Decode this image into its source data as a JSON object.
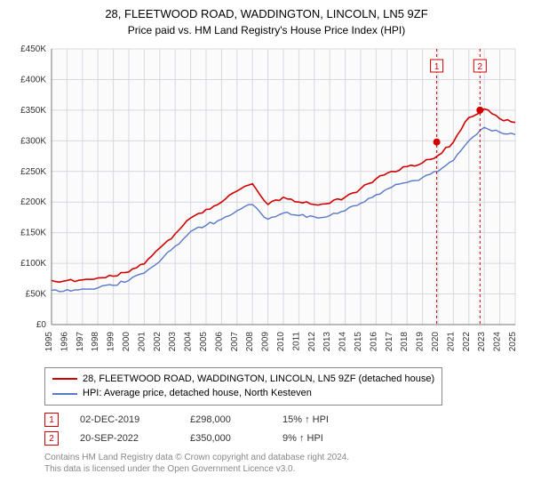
{
  "title": "28, FLEETWOOD ROAD, WADDINGTON, LINCOLN, LN5 9ZF",
  "subtitle": "Price paid vs. HM Land Registry's House Price Index (HPI)",
  "chart": {
    "type": "line",
    "background_color": "#ffffff",
    "plot_bg_color": "#fbfbfc",
    "grid_color": "#d8d8df",
    "axis_color": "#000000",
    "tick_font_size": 10,
    "tick_color": "#333333",
    "ylabel_prefix": "£",
    "ylim": [
      0,
      450000
    ],
    "ytick_step": 50000,
    "yticks": [
      "£0",
      "£50K",
      "£100K",
      "£150K",
      "£200K",
      "£250K",
      "£300K",
      "£350K",
      "£400K",
      "£450K"
    ],
    "x_years": [
      1995,
      1996,
      1997,
      1998,
      1999,
      2000,
      2001,
      2002,
      2003,
      2004,
      2005,
      2006,
      2007,
      2008,
      2009,
      2010,
      2011,
      2012,
      2013,
      2014,
      2015,
      2016,
      2017,
      2018,
      2019,
      2020,
      2021,
      2022,
      2023,
      2024,
      2025
    ],
    "series": [
      {
        "name": "property",
        "label": "28, FLEETWOOD ROAD, WADDINGTON, LINCOLN, LN5 9ZF (detached house)",
        "color": "#d00000",
        "line_width": 1.6,
        "values": [
          72000,
          72000,
          73000,
          76000,
          79000,
          86000,
          99000,
          125000,
          148000,
          174000,
          188000,
          200000,
          218000,
          230000,
          196000,
          208000,
          200000,
          196000,
          198000,
          208000,
          222000,
          238000,
          250000,
          258000,
          264000,
          276000,
          298000,
          338000,
          352000,
          336000,
          330000
        ]
      },
      {
        "name": "hpi",
        "label": "HPI: Average price, detached house, North Kesteven",
        "color": "#5878c8",
        "line_width": 1.4,
        "values": [
          56000,
          57000,
          58000,
          60000,
          64000,
          72000,
          84000,
          103000,
          128000,
          152000,
          162000,
          172000,
          186000,
          196000,
          172000,
          182000,
          178000,
          176000,
          178000,
          186000,
          198000,
          212000,
          224000,
          232000,
          240000,
          250000,
          268000,
          300000,
          322000,
          314000,
          310000
        ]
      }
    ],
    "sale_markers": [
      {
        "num": "1",
        "year_frac": 2019.92,
        "value": 298000,
        "color": "#d00000"
      },
      {
        "num": "2",
        "year_frac": 2022.72,
        "value": 350000,
        "color": "#d00000"
      }
    ],
    "marker_line_color": "#d00000",
    "marker_line_dash": "3,3",
    "marker_box_border": "#d00000",
    "marker_dot_radius": 4
  },
  "legend": {
    "border_color": "#888888",
    "font_size": 11
  },
  "sales": [
    {
      "num": "1",
      "date": "02-DEC-2019",
      "price": "£298,000",
      "pct": "15% ↑ HPI"
    },
    {
      "num": "2",
      "date": "20-SEP-2022",
      "price": "£350,000",
      "pct": "9% ↑ HPI"
    }
  ],
  "footnote_line1": "Contains HM Land Registry data © Crown copyright and database right 2024.",
  "footnote_line2": "This data is licensed under the Open Government Licence v3.0."
}
